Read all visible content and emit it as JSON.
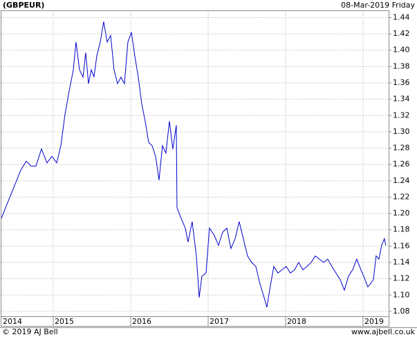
{
  "chart_data": {
    "type": "line",
    "title": "(GBPEUR)",
    "subtitle": "08-Mar-2019 Friday",
    "footer_left": "© 2019 AJ Bell",
    "footer_right": "www.ajbell.co.uk",
    "grid": true,
    "xlim": [
      2014.33,
      2019.34
    ],
    "xticks": [
      2014,
      2015,
      2016,
      2017,
      2018,
      2019
    ],
    "ylim": [
      1.074,
      1.448
    ],
    "yticks": [
      1.08,
      {
        "value": 1.1,
        "label": "1.10"
      },
      1.12,
      1.14,
      1.16,
      1.18,
      {
        "value": 1.2,
        "label": "1.20"
      },
      1.22,
      1.24,
      1.26,
      1.28,
      {
        "value": 1.3,
        "label": "1.30"
      },
      1.32,
      1.34,
      1.36,
      1.38,
      {
        "value": 1.4,
        "label": "1.40"
      },
      1.42,
      1.44
    ],
    "series": [
      {
        "name": "GBPEUR",
        "color": "#0000cc",
        "x": [
          2014.33,
          2014.401,
          2014.491,
          2014.58,
          2014.651,
          2014.714,
          2014.776,
          2014.848,
          2014.919,
          2014.982,
          2015.044,
          2015.098,
          2015.151,
          2015.205,
          2015.259,
          2015.294,
          2015.339,
          2015.384,
          2015.419,
          2015.455,
          2015.491,
          2015.526,
          2015.562,
          2015.607,
          2015.651,
          2015.696,
          2015.741,
          2015.785,
          2015.83,
          2015.875,
          2015.919,
          2015.964,
          2016.009,
          2016.053,
          2016.098,
          2016.143,
          2016.187,
          2016.232,
          2016.276,
          2016.321,
          2016.366,
          2016.41,
          2016.455,
          2016.5,
          2016.544,
          2016.589,
          2016.598,
          2016.651,
          2016.705,
          2016.741,
          2016.794,
          2016.848,
          2016.884,
          2016.919,
          2016.973,
          2017.017,
          2017.08,
          2017.134,
          2017.187,
          2017.241,
          2017.294,
          2017.348,
          2017.401,
          2017.455,
          2017.509,
          2017.562,
          2017.616,
          2017.669,
          2017.723,
          2017.759,
          2017.794,
          2017.848,
          2017.901,
          2017.955,
          2018.009,
          2018.062,
          2018.116,
          2018.169,
          2018.223,
          2018.276,
          2018.33,
          2018.384,
          2018.437,
          2018.491,
          2018.544,
          2018.598,
          2018.651,
          2018.705,
          2018.759,
          2018.812,
          2018.866,
          2018.919,
          2018.973,
          2019.009,
          2019.062,
          2019.098,
          2019.134,
          2019.169,
          2019.205,
          2019.241,
          2019.276,
          2019.294
        ],
        "values": [
          1.194,
          1.211,
          1.232,
          1.253,
          1.264,
          1.258,
          1.258,
          1.279,
          1.262,
          1.27,
          1.262,
          1.283,
          1.321,
          1.35,
          1.376,
          1.41,
          1.376,
          1.367,
          1.397,
          1.359,
          1.376,
          1.367,
          1.393,
          1.41,
          1.435,
          1.41,
          1.418,
          1.376,
          1.359,
          1.367,
          1.359,
          1.41,
          1.422,
          1.393,
          1.367,
          1.334,
          1.313,
          1.287,
          1.283,
          1.27,
          1.241,
          1.283,
          1.274,
          1.313,
          1.279,
          1.308,
          1.207,
          1.194,
          1.182,
          1.165,
          1.19,
          1.148,
          1.097,
          1.123,
          1.127,
          1.182,
          1.173,
          1.161,
          1.177,
          1.182,
          1.157,
          1.169,
          1.19,
          1.169,
          1.148,
          1.14,
          1.135,
          1.114,
          1.097,
          1.085,
          1.106,
          1.135,
          1.127,
          1.131,
          1.135,
          1.127,
          1.131,
          1.14,
          1.131,
          1.135,
          1.14,
          1.148,
          1.144,
          1.14,
          1.144,
          1.135,
          1.127,
          1.119,
          1.106,
          1.123,
          1.131,
          1.144,
          1.131,
          1.123,
          1.11,
          1.114,
          1.119,
          1.148,
          1.144,
          1.161,
          1.169,
          1.161
        ]
      }
    ]
  }
}
